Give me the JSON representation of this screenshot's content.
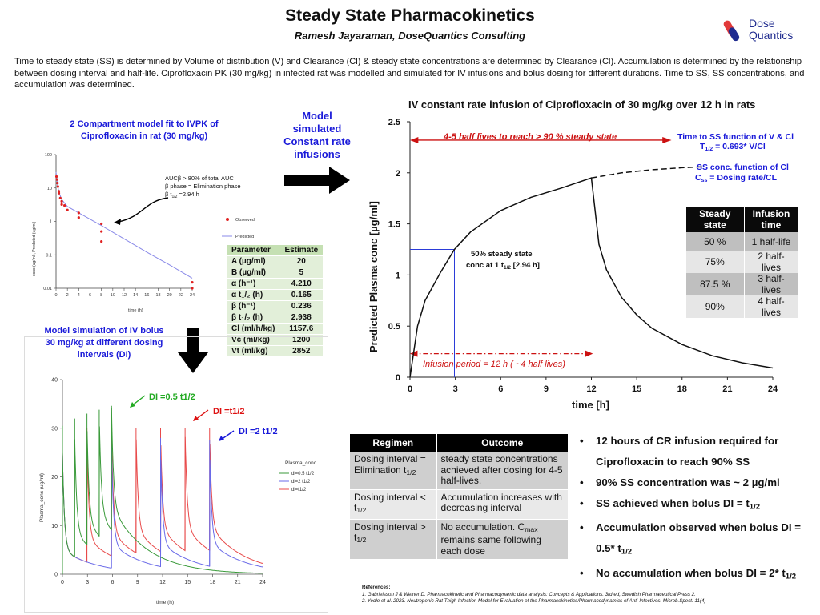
{
  "header": {
    "title": "Steady State Pharmacokinetics",
    "subtitle": "Ramesh Jayaraman, DoseQuantics Consulting",
    "logo_line1": "Dose",
    "logo_line2": "Quantics"
  },
  "intro": "Time to steady state (SS) is determined by Volume of distribution (V) and Clearance (Cl) & steady state concentrations are determined by Clearance (Cl). Accumulation is determined by the relationship between dosing interval and half-life. Ciprofloxacin PK (30 mg/kg) in infected rat was modelled and simulated for IV infusions and bolus dosing for different durations. Time to SS, SS concentrations, and accumulation was determined.",
  "headings": {
    "fit_line1": "2 Compartment model fit to IVPK of",
    "fit_line2": "Ciprofloxacin in rat  (30 mg/kg)",
    "model_sim": [
      "Model",
      "simulated",
      "Constant rate",
      "infusions"
    ],
    "bolus_line1": "Model simulation of IV bolus",
    "bolus_line2": "30 mg/kg at different dosing",
    "bolus_line3": "intervals (DI)"
  },
  "fit_chart": {
    "ylabel": "conc (ug/ml), Predicted (ug/ml)",
    "xlabel": "time (h)",
    "yticks": [
      "100",
      "10",
      "1",
      "0.1",
      "0.01"
    ],
    "xticks": [
      "0",
      "2",
      "4",
      "6",
      "8",
      "10",
      "12",
      "14",
      "16",
      "18",
      "20",
      "22",
      "24"
    ],
    "annot1": "AUCβ > 80% of total AUC",
    "annot2": "β phase = Elimination phase",
    "annot3": "β t",
    "annot3_sub": "1/2",
    "annot3_end": " =2.94 h",
    "legend_observed": "Observed",
    "legend_predicted": "Predicted",
    "observed": [
      [
        0.08,
        22
      ],
      [
        0.17,
        18
      ],
      [
        0.25,
        14
      ],
      [
        0.33,
        11
      ],
      [
        0.5,
        8
      ],
      [
        0.5,
        7
      ],
      [
        0.75,
        5
      ],
      [
        1,
        4
      ],
      [
        1,
        3.2
      ],
      [
        1.5,
        3.0
      ],
      [
        2,
        2.2
      ],
      [
        4,
        1.8
      ],
      [
        4,
        1.3
      ],
      [
        8,
        0.85
      ],
      [
        8,
        0.5
      ],
      [
        8,
        0.25
      ],
      [
        24,
        0.015
      ],
      [
        24,
        0.01
      ]
    ],
    "predicted": [
      [
        0,
        30
      ],
      [
        0.25,
        13
      ],
      [
        0.5,
        7.5
      ],
      [
        1,
        4.5
      ],
      [
        2,
        2.8
      ],
      [
        4,
        1.8
      ],
      [
        8,
        0.75
      ],
      [
        12,
        0.3
      ],
      [
        16,
        0.12
      ],
      [
        20,
        0.05
      ],
      [
        24,
        0.02
      ]
    ],
    "y_log_range": [
      0.01,
      100
    ],
    "x_range": [
      0,
      24
    ]
  },
  "param_table": {
    "header": [
      "Parameter",
      "Estimate"
    ],
    "rows": [
      [
        "A (µg/ml)",
        "20"
      ],
      [
        "B (µg/ml)",
        "5"
      ],
      [
        "α (h⁻¹)",
        "4.210"
      ],
      [
        "α t₁/₂ (h)",
        "0.165"
      ],
      [
        "β (h⁻¹)",
        "0.236"
      ],
      [
        "β t₁/₂ (h)",
        "2.938"
      ],
      [
        "Cl (ml/h/kg)",
        "1157.6"
      ],
      [
        "Vc (ml/kg)",
        "1200"
      ],
      [
        "Vt (ml/kg)",
        "2852"
      ]
    ]
  },
  "chart_data": [
    {
      "type": "line",
      "title": "IV constant rate infusion of Ciprofloxacin of 30 mg/kg over 12 h in rats",
      "xlabel": "time [h]",
      "ylabel": "Predicted Plasma conc [µg/ml]",
      "xlim": [
        0,
        24
      ],
      "ylim": [
        0,
        2.5
      ],
      "xticks": [
        "0",
        "3",
        "6",
        "9",
        "12",
        "15",
        "18",
        "21",
        "24"
      ],
      "yticks": [
        "0",
        "0.5",
        "1",
        "1.5",
        "2",
        "2.5"
      ],
      "series": [
        {
          "values": [
            [
              0,
              0
            ],
            [
              0.5,
              0.5
            ],
            [
              1,
              0.75
            ],
            [
              2,
              1.02
            ],
            [
              2.94,
              1.25
            ],
            [
              4,
              1.42
            ],
            [
              6,
              1.63
            ],
            [
              8,
              1.76
            ],
            [
              10,
              1.85
            ],
            [
              12,
              1.95
            ],
            [
              12.5,
              1.3
            ],
            [
              13,
              1.05
            ],
            [
              14,
              0.78
            ],
            [
              15,
              0.61
            ],
            [
              16,
              0.48
            ],
            [
              18,
              0.32
            ],
            [
              20,
              0.21
            ],
            [
              22,
              0.14
            ],
            [
              24,
              0.09
            ]
          ]
        },
        {
          "dashed": true,
          "values": [
            [
              12,
              1.95
            ],
            [
              14,
              2.0
            ],
            [
              16,
              2.03
            ],
            [
              18,
              2.05
            ],
            [
              19.5,
              2.06
            ]
          ]
        }
      ],
      "annotations": {
        "half_lives_arrow": "4-5 half lives to reach > 90 % steady state",
        "infusion_arrow": "Infusion period = 12 h ( ~4 half lives)",
        "half_point_line1": "50% steady state",
        "half_point_line2": "conc at 1 t",
        "half_point_sub": "1/2",
        "half_point_end": " [2.94 h]",
        "tss_line1": "Time to SS function of V & Cl",
        "tss_line2a": "T",
        "tss_line2sub": "1/2",
        "tss_line2b": " = 0.693* V/Cl",
        "css_line1": "SS conc. function of Cl",
        "css_line2a": "C",
        "css_line2sub": "ss",
        "css_line2b": " = Dosing rate/CL"
      }
    },
    {
      "type": "line",
      "xlabel": "time (h)",
      "ylabel": "Plasma_conc (ug/ml)",
      "xlim": [
        0,
        24
      ],
      "ylim": [
        0,
        40
      ],
      "xticks": [
        "0",
        "3",
        "6",
        "9",
        "12",
        "15",
        "18",
        "21",
        "24"
      ],
      "yticks": [
        "0",
        "10",
        "20",
        "30",
        "40"
      ],
      "legend_title": "Plasma_conc...",
      "series": [
        {
          "name": "di=0.5 t1/2",
          "color": "#3a9a3a",
          "interval": 1.47,
          "peaks": [
            30.5,
            32.0,
            33.0,
            33.8,
            34.6
          ],
          "doses": 5
        },
        {
          "name": "di=2 t1/2",
          "color": "#6a6ae8",
          "interval": 5.88,
          "peaks": [
            30.0,
            28.5,
            28.0,
            27.6
          ],
          "doses": 4
        },
        {
          "name": "di=t1/2",
          "color": "#e84a4a",
          "interval": 2.94,
          "peaks": [
            30.0,
            30.0,
            30.0,
            30.0,
            30.0,
            30.0,
            30.0
          ],
          "doses": 7
        }
      ],
      "annotations": {
        "green": "DI =0.5 t1/2",
        "red": "DI =t1/2",
        "blue": "DI =2 t1/2"
      }
    }
  ],
  "ss_table": {
    "header": [
      "Steady state",
      "Infusion time"
    ],
    "rows": [
      [
        "50 %",
        "1 half-life"
      ],
      [
        "75%",
        "2 half-lives"
      ],
      [
        "87.5 %",
        "3 half-lives"
      ],
      [
        "90%",
        "4 half-lives"
      ]
    ]
  },
  "regimen_table": {
    "header": [
      "Regimen",
      "Outcome"
    ],
    "rows": [
      {
        "regimen": "Dosing interval = Elimination t",
        "regimen_sub": "1/2",
        "outcome": "steady state concentrations achieved after dosing for 4-5 half-lives."
      },
      {
        "regimen": "Dosing interval < t",
        "regimen_sub": "1/2",
        "outcome": "Accumulation increases with decreasing interval"
      },
      {
        "regimen": "Dosing interval > t",
        "regimen_sub": "1/2",
        "outcome_a": "No accumulation. C",
        "outcome_sub": "max",
        "outcome_b": " remains same following each dose"
      }
    ]
  },
  "bullets": {
    "b1": "12 hours of CR infusion required for Ciprofloxacin to reach 90% SS",
    "b2": "90% SS concentration was ~ 2 µg/ml",
    "b3a": "SS achieved when bolus DI = t",
    "b3sub": "1/2",
    "b4a": "Accumulation observed when bolus DI = 0.5* t",
    "b4sub": "1/2",
    "b5a": "No accumulation when bolus DI = 2* t",
    "b5sub": "1/2"
  },
  "references": {
    "heading": "References:",
    "r1": "1.       Gabrielsson J & Weiner D. Pharmacokinetic and Pharmacodynamic data analysis: Concepts & Applications. 3rd ed, Swedish Pharmaceutical Press 2.",
    "r2": "2.       Yedle et al. 2023. Neutropenic Rat Thigh Infection Model for Evaluation of the Pharmacokinetics/Pharmacodynamics of Anti-Infectives. Microb.Spect. 11(4)"
  },
  "colors": {
    "heading_blue": "#1a1ad9",
    "annotation_red": "#cc1111",
    "annotation_blue": "#1a1ad9",
    "logo_blue": "#1f2b8f",
    "logo_red": "#e23a3a"
  }
}
